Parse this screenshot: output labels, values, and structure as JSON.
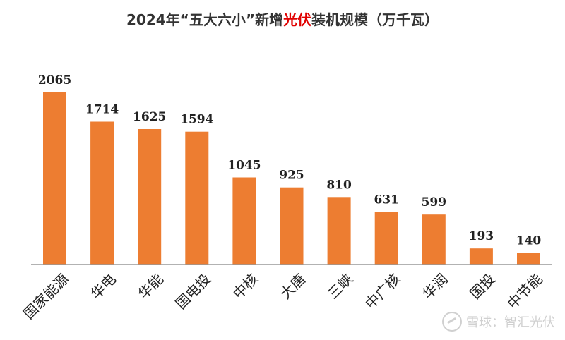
{
  "title": {
    "prefix": "2024年“五大六小”新增",
    "highlight": "光伏",
    "suffix": "装机规模（万千瓦）",
    "highlight_color": "#e00000"
  },
  "watermark": {
    "text": "雪球：智汇光伏",
    "logo_icon": "snowball-logo-icon"
  },
  "colors": {
    "bar": "#ed7d31",
    "axis": "#999999"
  },
  "chart_data": {
    "type": "bar",
    "title": "2024年“五大六小”新增光伏装机规模（万千瓦）",
    "xlabel": "",
    "ylabel": "",
    "categories": [
      "国家能源",
      "华电",
      "华能",
      "国电投",
      "中核",
      "大唐",
      "三峡",
      "中广核",
      "华润",
      "国投",
      "中节能"
    ],
    "values": [
      2065,
      1714,
      1625,
      1594,
      1045,
      925,
      810,
      631,
      599,
      193,
      140
    ],
    "ylim": [
      0,
      2065
    ],
    "grid": false,
    "legend": "none"
  }
}
